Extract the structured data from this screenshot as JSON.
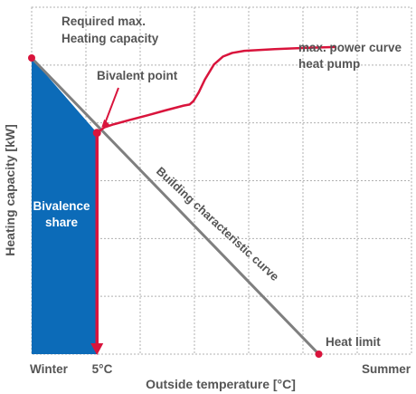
{
  "chart_data": {
    "type": "line",
    "title": "",
    "xlabel": "Outside temperature [°C]",
    "ylabel": "Heating capacity [kW]",
    "x_tick_labels": {
      "left": "Winter",
      "mid": "5°C",
      "right": "Summer"
    },
    "grid": true,
    "annotations": {
      "required_max": [
        "Required max.",
        "Heating capacity"
      ],
      "bivalent_point": "Bivalent point",
      "max_power_curve": [
        "max. power curve",
        "heat pump"
      ],
      "building_curve": "Building characteristic curve",
      "heat_limit": "Heat limit",
      "bivalence_share": [
        "Bivalence",
        "share"
      ]
    },
    "colors": {
      "heat_pump": "#d9143c",
      "building": "#7f7f7f",
      "bivalence_fill": "#0c6bb8",
      "grid": "#b0b0b0",
      "text": "#555555"
    },
    "series": [
      {
        "key": "building",
        "points": [
          [
            0,
            100
          ],
          [
            94.5,
            0
          ]
        ]
      },
      {
        "key": "heat_pump",
        "points": [
          [
            21.5,
            74.7
          ],
          [
            24,
            76.6
          ],
          [
            27,
            77.6
          ],
          [
            32,
            79.0
          ],
          [
            38,
            80.6
          ],
          [
            44,
            82.3
          ],
          [
            50,
            83.9
          ],
          [
            52,
            84.3
          ],
          [
            53.3,
            85.5
          ],
          [
            55,
            88.4
          ],
          [
            57,
            92.7
          ],
          [
            60,
            97.8
          ],
          [
            63,
            100.5
          ],
          [
            66,
            101.7
          ],
          [
            70,
            102.4
          ],
          [
            80,
            103.0
          ],
          [
            90,
            103.4
          ],
          [
            100,
            103.7
          ]
        ]
      }
    ],
    "bivalent_point": [
      21.5,
      74.7
    ],
    "bivalence_region": [
      [
        0,
        100
      ],
      [
        21.5,
        74.7
      ],
      [
        21.5,
        0
      ],
      [
        0,
        0
      ]
    ]
  }
}
